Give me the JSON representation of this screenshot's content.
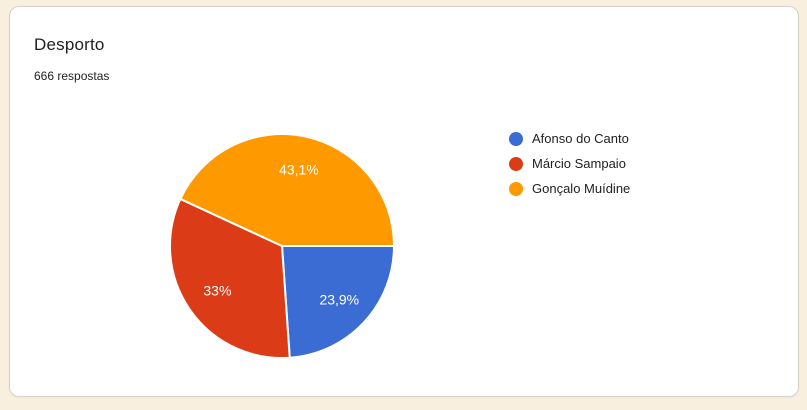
{
  "card": {
    "title": "Desporto",
    "responses_text": "666 respostas"
  },
  "colors": {
    "page_background": "#f9efdf",
    "card_background": "#ffffff",
    "card_border": "#d6d2cb",
    "text_primary": "#202124",
    "pie_label_text": "#ffffff",
    "slice_separator": "#ffffff"
  },
  "chart_data": {
    "type": "pie",
    "title": "Desporto",
    "subtitle": "666 respostas",
    "categories": [
      "Afonso do Canto",
      "Márcio Sampaio",
      "Gonçalo Muídine"
    ],
    "values": [
      23.9,
      33,
      43.1
    ],
    "percent_labels": [
      "23,9%",
      "33%",
      "43,1%"
    ],
    "colors": [
      "#3b6cd4",
      "#db3c17",
      "#fe9900"
    ],
    "start_angle_deg": 0,
    "direction": "clockwise",
    "label_radius_ratio": 0.7,
    "legend_position": "right",
    "grid": false
  }
}
